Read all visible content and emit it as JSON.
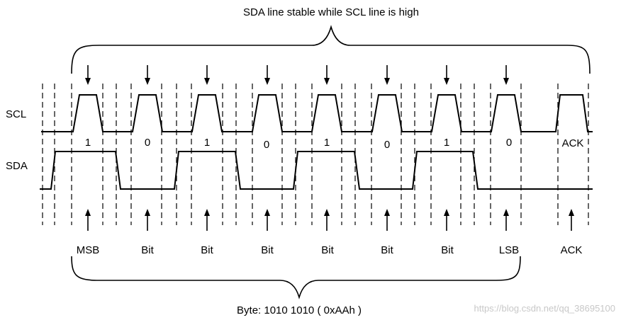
{
  "diagram": {
    "top_caption": "SDA line stable while SCL line is high",
    "bottom_caption": "Byte: 1010 1010 ( 0xAAh )",
    "watermark": "https://blog.csdn.net/qq_38695100",
    "scl_label": "SCL",
    "sda_label": "SDA",
    "bits": [
      {
        "value": "1",
        "label": "MSB"
      },
      {
        "value": "0",
        "label": "Bit"
      },
      {
        "value": "1",
        "label": "Bit"
      },
      {
        "value": "0",
        "label": "Bit"
      },
      {
        "value": "1",
        "label": "Bit"
      },
      {
        "value": "0",
        "label": "Bit"
      },
      {
        "value": "1",
        "label": "Bit"
      },
      {
        "value": "0",
        "label": "LSB"
      },
      {
        "value": "ACK",
        "label": "ACK"
      }
    ]
  }
}
